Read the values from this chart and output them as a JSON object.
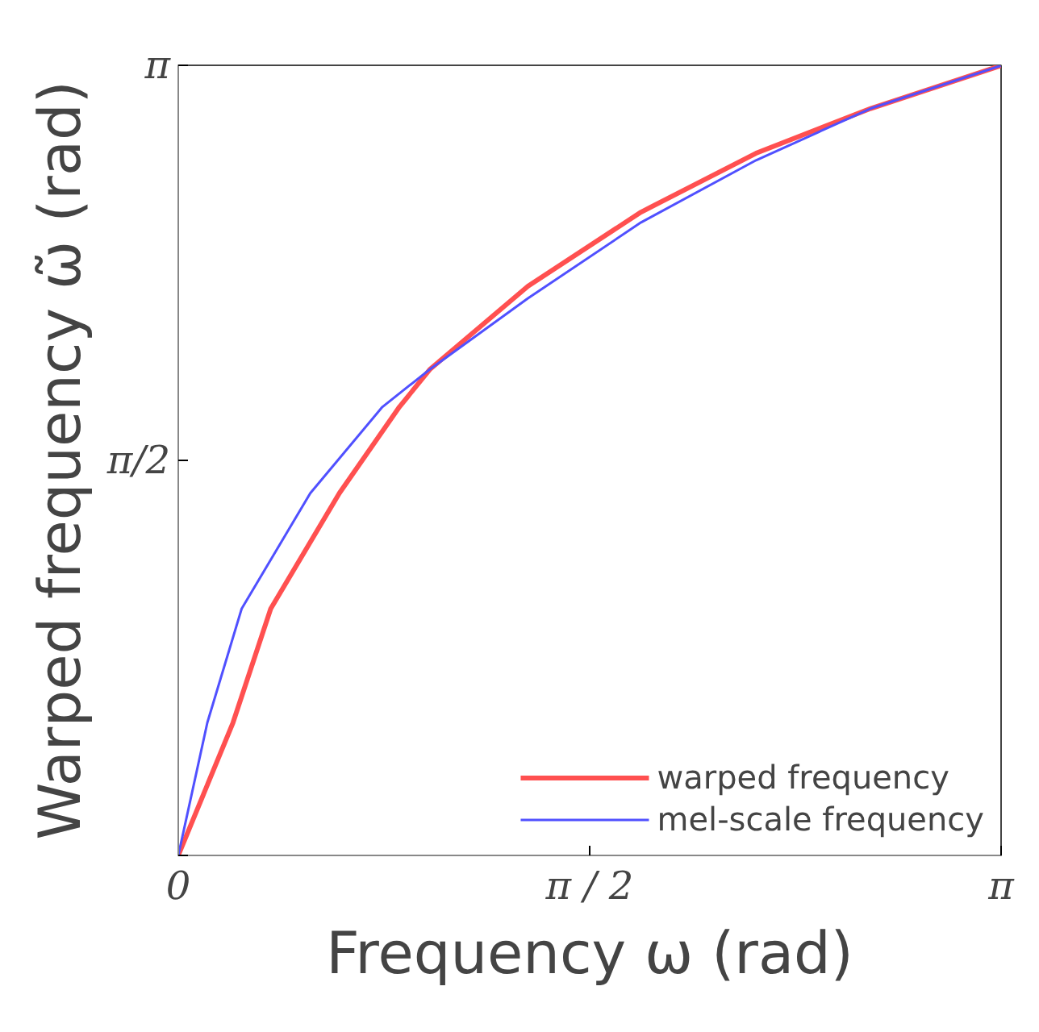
{
  "chart_data": {
    "type": "line",
    "xlabel": "Frequency ω (rad)",
    "ylabel": "Warped frequency ω̃ (rad)",
    "xlim": [
      0,
      3.1416
    ],
    "ylim": [
      0,
      3.1416
    ],
    "xticks": [
      {
        "value": 0,
        "label": "0"
      },
      {
        "value": 1.5708,
        "label": "π / 2"
      },
      {
        "value": 3.1416,
        "label": "π"
      }
    ],
    "yticks": [
      {
        "value": 0,
        "label": null
      },
      {
        "value": 1.5708,
        "label": "π/2"
      },
      {
        "value": 3.1416,
        "label": "π"
      }
    ],
    "grid": false,
    "legend": "bottom right",
    "line_style": "solid",
    "marker": "none",
    "series": [
      {
        "name": "warped frequency",
        "color": "#ff5050",
        "x": [
          0,
          0.209,
          0.353,
          0.615,
          0.844,
          0.962,
          1.335,
          1.767,
          2.206,
          2.644,
          3.14
        ],
        "values": [
          0,
          0.528,
          0.981,
          1.44,
          1.783,
          1.934,
          2.263,
          2.558,
          2.792,
          2.97,
          3.14
        ]
      },
      {
        "name": "mel-scale frequency",
        "color": "#5050ff",
        "x": [
          0,
          0.111,
          0.242,
          0.504,
          0.779,
          0.962,
          1.335,
          1.767,
          2.206,
          2.644,
          3.14
        ],
        "values": [
          0,
          0.528,
          0.981,
          1.44,
          1.783,
          1.934,
          2.215,
          2.517,
          2.764,
          2.97,
          3.14
        ]
      }
    ]
  }
}
